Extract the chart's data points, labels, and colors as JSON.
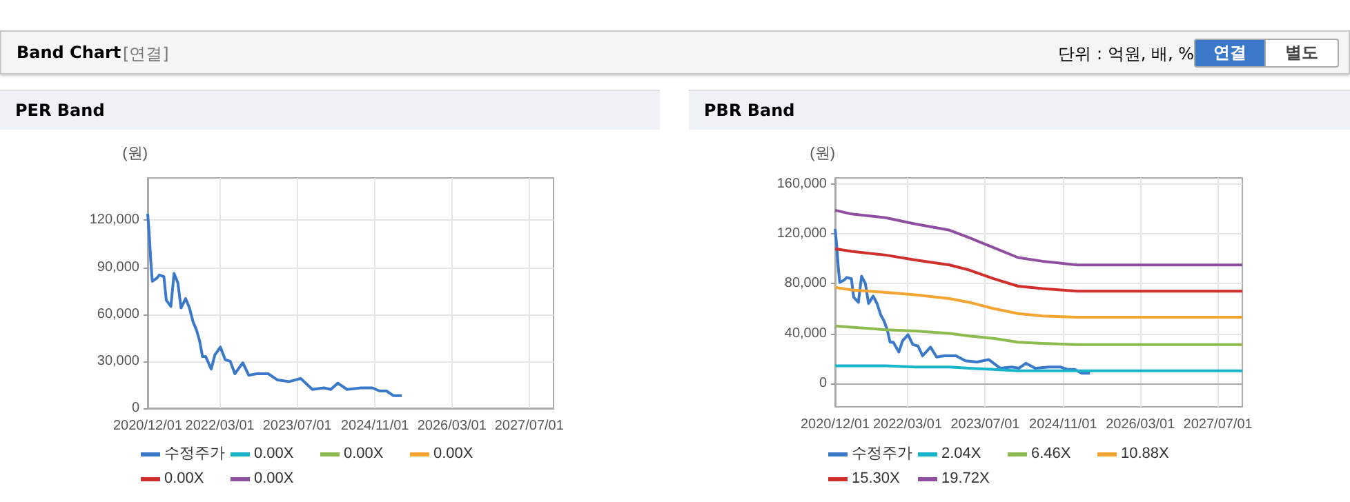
{
  "chart_data": [
    {
      "type": "line",
      "title": "PER Band",
      "ylabel": "(원)",
      "annotations": [
        "Band Chart",
        "[연결]",
        "단위 : 억원, 배, %",
        "연결",
        "별도"
      ],
      "x": [
        "2020-12-01",
        "2020-12-10",
        "2020-12-21",
        "2020-12-30",
        "2021-01-28",
        "2021-02-12",
        "2021-03-13",
        "2021-03-28",
        "2021-04-26",
        "2021-05-16",
        "2021-06-09",
        "2021-06-29",
        "2021-07-28",
        "2021-08-21",
        "2021-09-13",
        "2021-10-04",
        "2021-10-24",
        "2021-11-11",
        "2021-12-01",
        "2022-01-05",
        "2022-01-28",
        "2022-03-04",
        "2022-04-03",
        "2022-05-05",
        "2022-06-03",
        "2022-07-23",
        "2022-08-30",
        "2022-10-18",
        "2022-12-30",
        "2023-02-27",
        "2023-05-11",
        "2023-07-23",
        "2023-10-04",
        "2023-12-16",
        "2024-01-28",
        "2024-03-12",
        "2024-05-10",
        "2024-08-05",
        "2024-10-17",
        "2024-11-30",
        "2025-01-13",
        "2025-02-26",
        "2025-04-19"
      ],
      "series": [
        {
          "name": "수정주가",
          "color": "#3a78c9",
          "values": [
            124000,
            112000,
            93000,
            81000,
            83000,
            85000,
            84000,
            69000,
            65000,
            86000,
            80000,
            64000,
            70000,
            64000,
            55000,
            50000,
            43000,
            33000,
            33000,
            25000,
            34000,
            39000,
            31000,
            30000,
            22000,
            29000,
            21000,
            22000,
            22000,
            18000,
            17000,
            19000,
            12000,
            13000,
            12000,
            16000,
            12000,
            13000,
            13000,
            11000,
            11000,
            8000,
            8000
          ]
        },
        {
          "name": "0.00X",
          "color": "#17b5c9",
          "values": [
            null,
            null,
            null,
            null,
            null,
            null,
            null,
            null,
            null,
            null,
            null,
            null,
            null,
            null,
            null,
            null,
            null,
            null,
            null,
            null,
            null,
            null,
            null,
            null,
            null,
            null,
            null,
            null,
            null,
            null,
            null,
            null,
            null,
            null,
            null,
            null,
            null,
            null,
            null,
            null,
            null,
            null,
            null
          ]
        },
        {
          "name": "0.00X",
          "color": "#8dbb4f",
          "values": [
            null,
            null,
            null,
            null,
            null,
            null,
            null,
            null,
            null,
            null,
            null,
            null,
            null,
            null,
            null,
            null,
            null,
            null,
            null,
            null,
            null,
            null,
            null,
            null,
            null,
            null,
            null,
            null,
            null,
            null,
            null,
            null,
            null,
            null,
            null,
            null,
            null,
            null,
            null,
            null,
            null,
            null,
            null
          ]
        },
        {
          "name": "0.00X",
          "color": "#f3a431",
          "values": [
            null,
            null,
            null,
            null,
            null,
            null,
            null,
            null,
            null,
            null,
            null,
            null,
            null,
            null,
            null,
            null,
            null,
            null,
            null,
            null,
            null,
            null,
            null,
            null,
            null,
            null,
            null,
            null,
            null,
            null,
            null,
            null,
            null,
            null,
            null,
            null,
            null,
            null,
            null,
            null,
            null,
            null,
            null
          ]
        },
        {
          "name": "0.00X",
          "color": "#d02f2b",
          "values": [
            null,
            null,
            null,
            null,
            null,
            null,
            null,
            null,
            null,
            null,
            null,
            null,
            null,
            null,
            null,
            null,
            null,
            null,
            null,
            null,
            null,
            null,
            null,
            null,
            null,
            null,
            null,
            null,
            null,
            null,
            null,
            null,
            null,
            null,
            null,
            null,
            null,
            null,
            null,
            null,
            null,
            null,
            null
          ]
        },
        {
          "name": "0.00X",
          "color": "#8e4fa0",
          "values": [
            null,
            null,
            null,
            null,
            null,
            null,
            null,
            null,
            null,
            null,
            null,
            null,
            null,
            null,
            null,
            null,
            null,
            null,
            null,
            null,
            null,
            null,
            null,
            null,
            null,
            null,
            null,
            null,
            null,
            null,
            null,
            null,
            null,
            null,
            null,
            null,
            null,
            null,
            null,
            null,
            null,
            null,
            null
          ]
        }
      ],
      "xlim": [
        "2020-12-01",
        "2027-12-01"
      ],
      "xticks": [
        {
          "value": "2020-12-01",
          "label": "2020/12/01"
        },
        {
          "value": "2022-03-01",
          "label": "2022/03/01"
        },
        {
          "value": "2023-07-01",
          "label": "2023/07/01"
        },
        {
          "value": "2024-11-01",
          "label": "2024/11/01"
        },
        {
          "value": "2026-03-01",
          "label": "2026/03/01"
        },
        {
          "value": "2027-07-01",
          "label": "2027/07/01"
        }
      ],
      "ylim": [
        0,
        147000
      ],
      "yticks": [
        {
          "value": 0,
          "label": "0"
        },
        {
          "value": 30000,
          "label": "30,000"
        },
        {
          "value": 60000,
          "label": "60,000"
        },
        {
          "value": 90000,
          "label": "90,000"
        },
        {
          "value": 120000,
          "label": "120,000"
        }
      ],
      "grid": true,
      "legend": "bottom",
      "marker": "none"
    },
    {
      "type": "line",
      "title": "PBR Band",
      "ylabel": "(원)",
      "x": [
        "2020-12-01",
        "2021-03-13",
        "2021-10-14",
        "2022-04-17",
        "2022-11-19",
        "2023-03-22",
        "2023-08-23",
        "2024-01-23",
        "2024-06-25",
        "2025-01-26",
        "2027-12-01"
      ],
      "series": [
        {
          "name": "수정주가",
          "color": "#3a78c9",
          "x": [
            "2020-12-01",
            "2020-12-10",
            "2020-12-21",
            "2020-12-30",
            "2021-01-28",
            "2021-02-12",
            "2021-03-13",
            "2021-03-28",
            "2021-04-26",
            "2021-05-16",
            "2021-06-09",
            "2021-06-29",
            "2021-07-28",
            "2021-08-21",
            "2021-09-13",
            "2021-10-04",
            "2021-10-24",
            "2021-11-11",
            "2021-12-01",
            "2022-01-05",
            "2022-01-28",
            "2022-03-04",
            "2022-04-03",
            "2022-05-05",
            "2022-06-03",
            "2022-07-23",
            "2022-08-30",
            "2022-10-18",
            "2022-12-30",
            "2023-02-27",
            "2023-05-11",
            "2023-07-23",
            "2023-10-04",
            "2023-12-16",
            "2024-01-28",
            "2024-03-12",
            "2024-05-10",
            "2024-08-05",
            "2024-10-17",
            "2024-11-30",
            "2025-01-13",
            "2025-02-26",
            "2025-04-19"
          ],
          "values": [
            124000,
            112000,
            93000,
            81000,
            83000,
            85000,
            84000,
            69000,
            65000,
            86000,
            80000,
            64000,
            70000,
            64000,
            55000,
            50000,
            43000,
            33000,
            33000,
            25000,
            34000,
            39000,
            31000,
            30000,
            22000,
            29000,
            21000,
            22000,
            22000,
            18000,
            17000,
            19000,
            12000,
            13000,
            12000,
            16000,
            12000,
            13000,
            13000,
            11000,
            11000,
            8000,
            8000
          ]
        },
        {
          "name": "2.04X",
          "color": "#17b5c9",
          "values": [
            14000,
            14000,
            14000,
            13000,
            13000,
            12000,
            11000,
            10000,
            10000,
            10000,
            10000
          ]
        },
        {
          "name": "6.46X",
          "color": "#8dbb4f",
          "values": [
            46000,
            45000,
            43000,
            42000,
            40000,
            38000,
            36000,
            33000,
            32000,
            31000,
            31000
          ]
        },
        {
          "name": "10.88X",
          "color": "#f3a431",
          "values": [
            77000,
            75000,
            73000,
            71000,
            68000,
            65000,
            60000,
            56000,
            54000,
            53000,
            53000
          ]
        },
        {
          "name": "15.30X",
          "color": "#d02f2b",
          "values": [
            108000,
            106000,
            103000,
            99000,
            95000,
            91000,
            84000,
            78000,
            76000,
            74000,
            74000
          ]
        },
        {
          "name": "19.72X",
          "color": "#8e4fa0",
          "values": [
            139000,
            136000,
            133000,
            128000,
            123000,
            117000,
            109000,
            101000,
            98000,
            95000,
            95000
          ]
        }
      ],
      "xlim": [
        "2020-12-01",
        "2027-12-01"
      ],
      "xticks": [
        {
          "value": "2020-12-01",
          "label": "2020/12/01"
        },
        {
          "value": "2022-03-01",
          "label": "2022/03/01"
        },
        {
          "value": "2023-07-01",
          "label": "2023/07/01"
        },
        {
          "value": "2024-11-01",
          "label": "2024/11/01"
        },
        {
          "value": "2026-03-01",
          "label": "2026/03/01"
        },
        {
          "value": "2027-07-01",
          "label": "2027/07/01"
        }
      ],
      "ylim": [
        -19000,
        165000
      ],
      "yticks": [
        {
          "value": 0,
          "label": "0"
        },
        {
          "value": 40000,
          "label": "40,000"
        },
        {
          "value": 80000,
          "label": "80,000"
        },
        {
          "value": 120000,
          "label": "120,000"
        },
        {
          "value": 160000,
          "label": "160,000"
        }
      ],
      "grid": true,
      "legend": "bottom",
      "marker": "none"
    }
  ]
}
